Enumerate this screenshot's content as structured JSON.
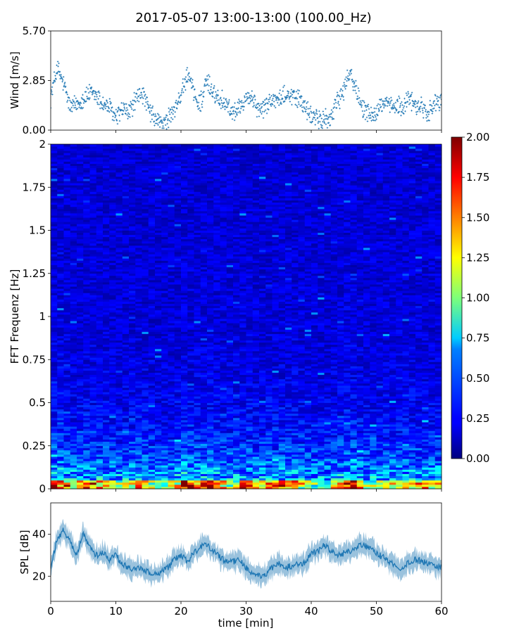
{
  "figure": {
    "title": "2017-05-07 13:00-13:00 (100.00_Hz)"
  },
  "chart_data": [
    {
      "id": "wind",
      "type": "scatter",
      "ylabel": "Wind [m/s]",
      "xlabel": "",
      "xlim": [
        0,
        60
      ],
      "ylim": [
        0,
        5.7
      ],
      "yticks": [
        0,
        2.85,
        5.7
      ],
      "ytick_labels": [
        "0.00",
        "2.85",
        "5.70"
      ],
      "x": [
        0,
        1,
        2,
        3,
        4,
        5,
        6,
        7,
        8,
        9,
        10,
        11,
        12,
        13,
        14,
        15,
        16,
        17,
        18,
        19,
        20,
        21,
        22,
        23,
        24,
        25,
        26,
        27,
        28,
        29,
        30,
        31,
        32,
        33,
        34,
        35,
        36,
        37,
        38,
        39,
        40,
        41,
        42,
        43,
        44,
        45,
        46,
        47,
        48,
        49,
        50,
        51,
        52,
        53,
        54,
        55,
        56,
        57,
        58,
        59,
        60
      ],
      "y": [
        1.9,
        3.6,
        2.6,
        1.3,
        1.5,
        1.8,
        2.1,
        2.0,
        1.5,
        1.3,
        0.7,
        1.2,
        1.0,
        1.7,
        2.2,
        1.2,
        0.6,
        0.4,
        0.6,
        1.1,
        2.1,
        3.2,
        2.0,
        1.6,
        2.8,
        2.1,
        1.8,
        1.6,
        1.0,
        1.4,
        2.0,
        1.8,
        1.1,
        1.4,
        1.8,
        1.7,
        2.1,
        2.0,
        1.8,
        1.3,
        0.8,
        0.6,
        0.6,
        0.7,
        1.6,
        2.3,
        3.4,
        2.2,
        1.3,
        0.9,
        1.0,
        1.6,
        1.3,
        1.5,
        1.2,
        1.9,
        1.3,
        1.4,
        1.0,
        1.5,
        1.6
      ]
    },
    {
      "id": "spectrogram",
      "type": "heatmap",
      "ylabel": "FFT Frequenz [Hz]",
      "xlabel": "",
      "xlim": [
        0,
        60
      ],
      "ylim": [
        0,
        2
      ],
      "yticks": [
        0,
        0.25,
        0.5,
        0.75,
        1,
        1.25,
        1.5,
        1.75,
        2
      ],
      "ytick_labels": [
        "0",
        "0.25",
        "0.5",
        "0.75",
        "1",
        "1.25",
        "1.5",
        "1.75",
        "2"
      ],
      "colormap": "jet",
      "vmin": 0,
      "vmax": 2,
      "colorbar_ticks": [
        "0.00",
        "0.25",
        "0.50",
        "0.75",
        "1.00",
        "1.25",
        "1.50",
        "1.75",
        "2.00"
      ]
    },
    {
      "id": "spl",
      "type": "line",
      "ylabel": "SPL [dB]",
      "xlabel": "time [min]",
      "xlim": [
        0,
        60
      ],
      "ylim": [
        8,
        55
      ],
      "yticks": [
        20,
        40
      ],
      "ytick_labels": [
        "20",
        "40"
      ],
      "xticks": [
        0,
        10,
        20,
        30,
        40,
        50,
        60
      ],
      "xtick_labels": [
        "0",
        "10",
        "20",
        "30",
        "40",
        "50",
        "60"
      ],
      "x": [
        0,
        1,
        2,
        3,
        4,
        5,
        6,
        7,
        8,
        9,
        10,
        11,
        12,
        13,
        14,
        15,
        16,
        17,
        18,
        19,
        20,
        21,
        22,
        23,
        24,
        25,
        26,
        27,
        28,
        29,
        30,
        31,
        32,
        33,
        34,
        35,
        36,
        37,
        38,
        39,
        40,
        41,
        42,
        43,
        44,
        45,
        46,
        47,
        48,
        49,
        50,
        51,
        52,
        53,
        54,
        55,
        56,
        57,
        58,
        59,
        60
      ],
      "y": [
        24,
        38,
        42,
        36,
        30,
        40,
        34,
        30,
        31,
        28,
        30,
        26,
        24,
        23,
        24,
        22,
        21,
        22,
        24,
        28,
        30,
        27,
        31,
        34,
        35,
        32,
        29,
        27,
        27,
        28,
        24,
        21,
        20,
        21,
        24,
        26,
        24,
        25,
        26,
        26,
        31,
        32,
        35,
        32,
        30,
        31,
        32,
        34,
        35,
        33,
        31,
        29,
        27,
        25,
        23,
        27,
        28,
        27,
        26,
        25,
        24
      ],
      "band_halfwidth": 4,
      "color": "#1f77b4"
    }
  ]
}
